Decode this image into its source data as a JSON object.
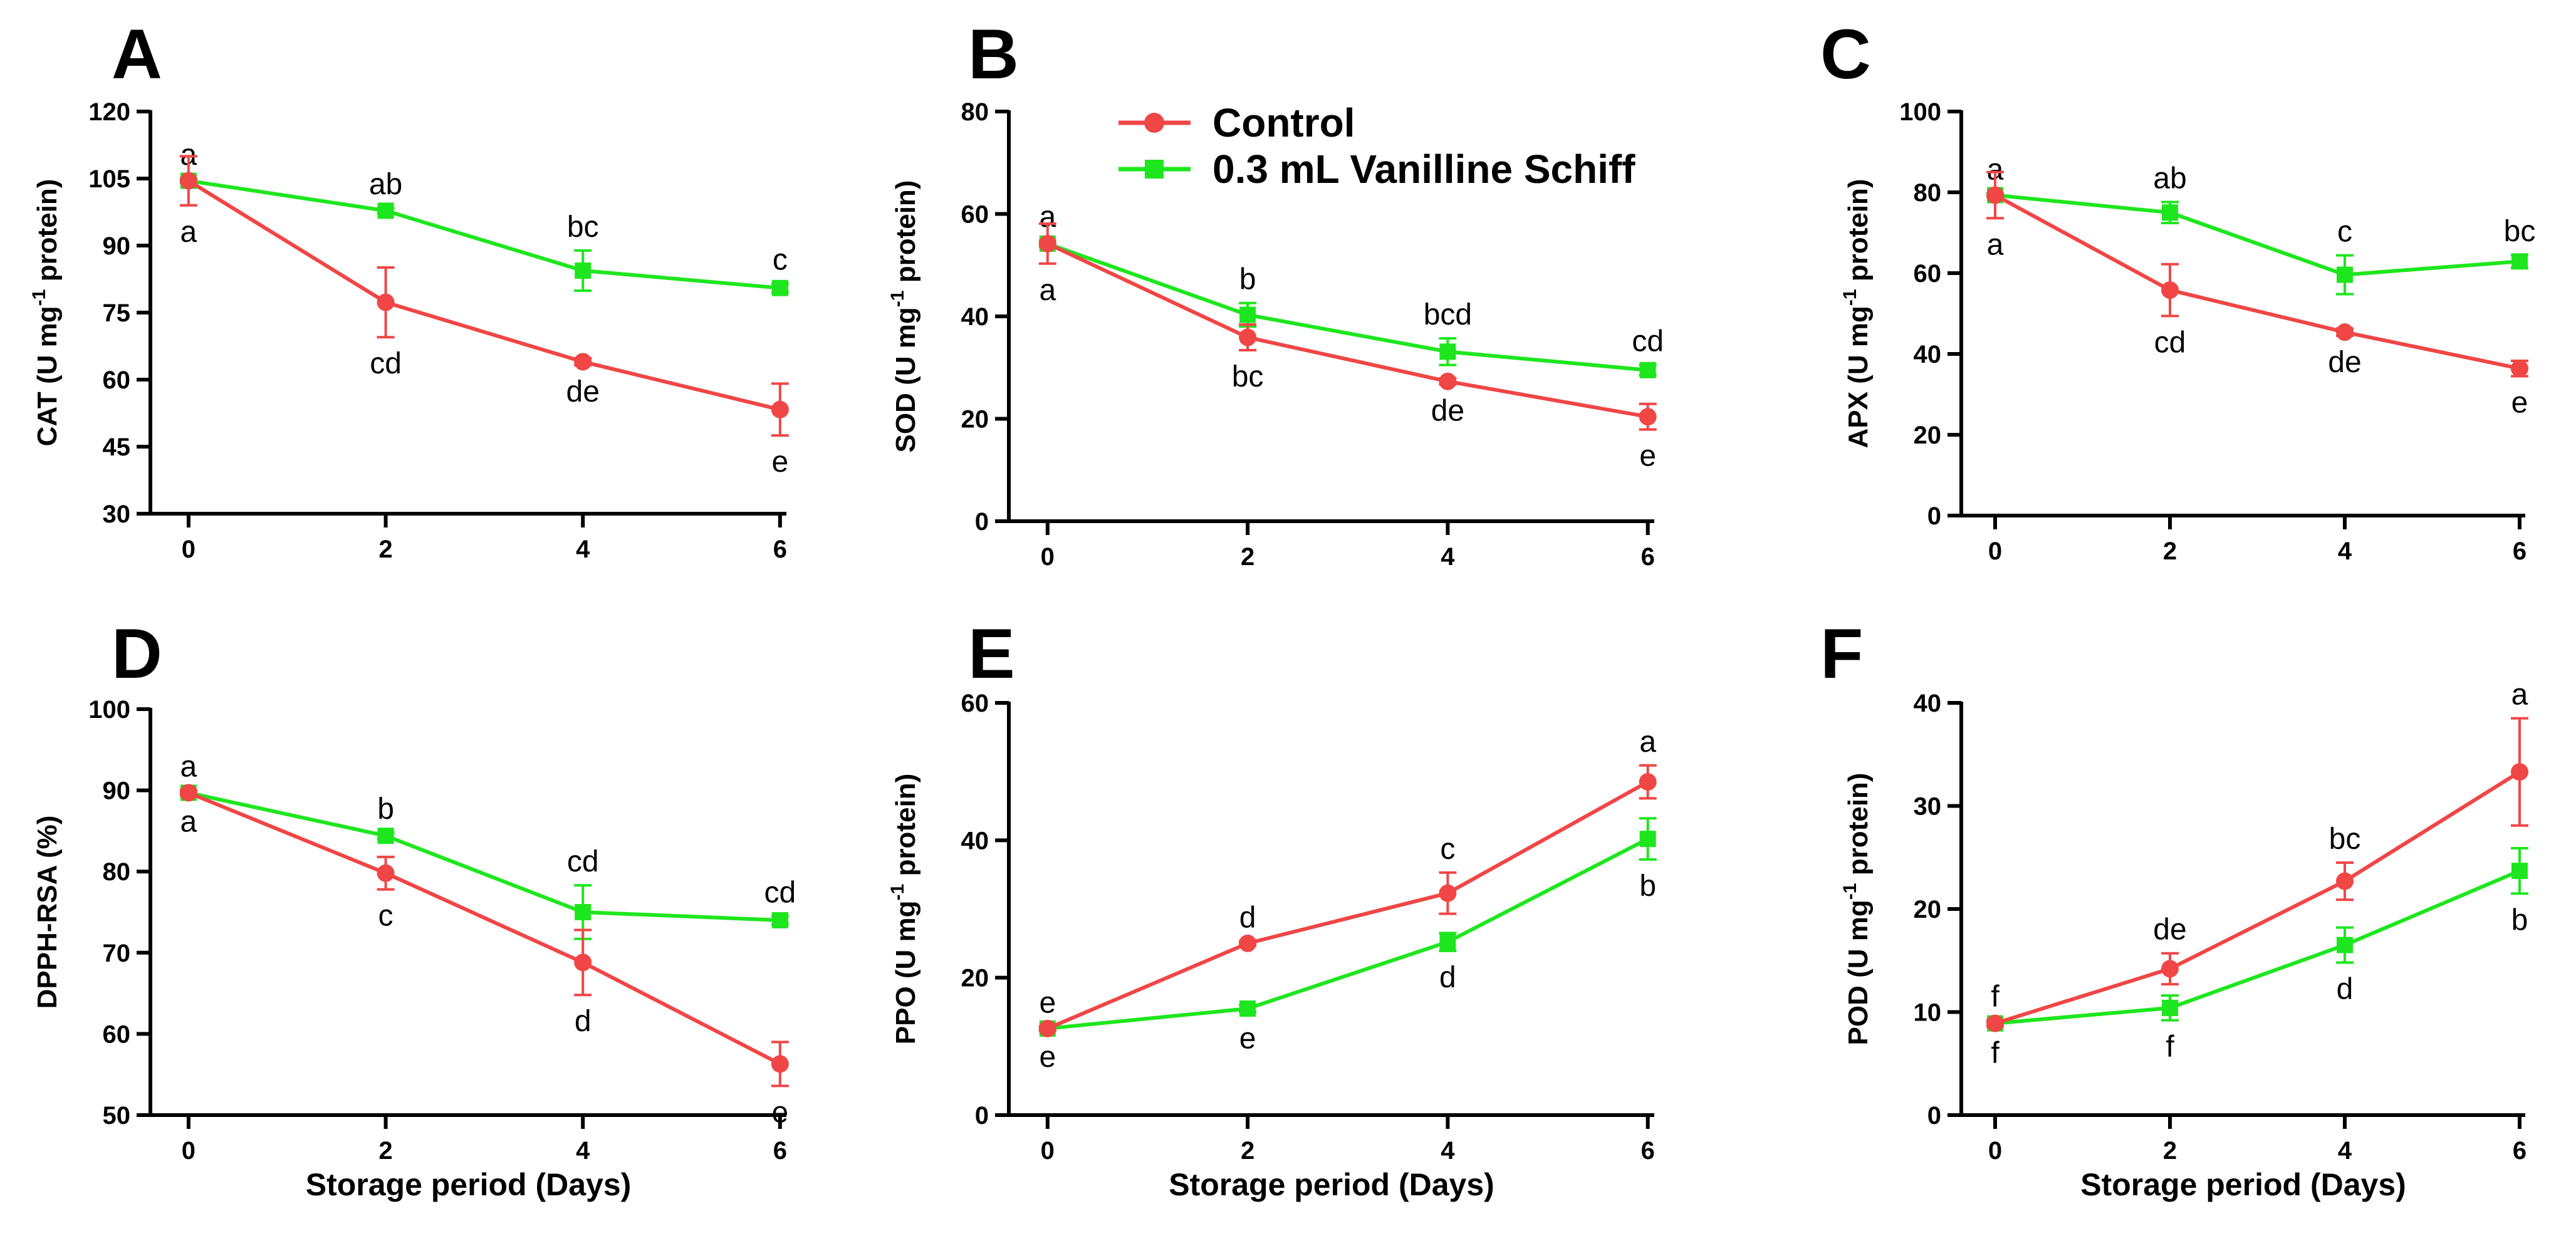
{
  "colors": {
    "control": "#f04646",
    "treatment": "#1ee61e",
    "axis": "#000000"
  },
  "legend": {
    "series": [
      "Control",
      "0.3 mL Vanilline Schiff"
    ],
    "placement": "top-center"
  },
  "x_axis_label": "Storage period (Days)",
  "chart_data": [
    {
      "type": "line",
      "panel": "A",
      "ylabel_html": [
        "CAT (U mg",
        "-1",
        " protein)"
      ],
      "ylim": [
        30,
        120
      ],
      "yticks": [
        30,
        45,
        60,
        75,
        90,
        105,
        120
      ],
      "x": [
        0,
        2,
        4,
        6
      ],
      "xticks": [
        "0",
        "2",
        "4",
        "6"
      ],
      "series": [
        {
          "name": "Control",
          "values": [
            104.5,
            77.3,
            64.0,
            53.3
          ],
          "err": [
            5.5,
            7.8,
            0.8,
            5.8
          ],
          "letters": [
            "a",
            "cd",
            "de",
            "e"
          ],
          "letter_pos": [
            "below",
            "below",
            "below",
            "below"
          ]
        },
        {
          "name": "0.3 mL Vanilline Schiff",
          "values": [
            104.5,
            97.8,
            84.4,
            80.5
          ],
          "err": [
            0.5,
            0.6,
            4.5,
            1.0
          ],
          "letters": [
            "a",
            "ab",
            "bc",
            "c"
          ],
          "letter_pos": [
            "above",
            "above",
            "above",
            "above"
          ]
        }
      ]
    },
    {
      "type": "line",
      "panel": "B",
      "ylabel_html": [
        "SOD (U mg",
        "-1",
        " protein)"
      ],
      "ylim": [
        0,
        80
      ],
      "yticks": [
        0,
        20,
        40,
        60,
        80
      ],
      "x": [
        0,
        2,
        4,
        6
      ],
      "xticks": [
        "0",
        "2",
        "4",
        "6"
      ],
      "series": [
        {
          "name": "Control",
          "values": [
            54.2,
            35.9,
            27.3,
            20.4
          ],
          "err": [
            3.9,
            2.5,
            0.6,
            2.5
          ],
          "letters": [
            "a",
            "bc",
            "de",
            "e"
          ],
          "letter_pos": [
            "below",
            "below",
            "below",
            "below"
          ]
        },
        {
          "name": "0.3 mL Vanilline Schiff",
          "values": [
            54.2,
            40.3,
            33.1,
            29.5
          ],
          "err": [
            0.6,
            2.3,
            2.6,
            1.0
          ],
          "letters": [
            "a",
            "b",
            "bcd",
            "cd"
          ],
          "letter_pos": [
            "above",
            "above",
            "above",
            "above"
          ]
        }
      ]
    },
    {
      "type": "line",
      "panel": "C",
      "ylabel_html": [
        "APX (U mg",
        "-1",
        " protein)"
      ],
      "ylim": [
        0,
        100
      ],
      "yticks": [
        0,
        20,
        40,
        60,
        80,
        100
      ],
      "x": [
        0,
        2,
        4,
        6
      ],
      "xticks": [
        "0",
        "2",
        "4",
        "6"
      ],
      "series": [
        {
          "name": "Control",
          "values": [
            79.3,
            55.8,
            45.4,
            36.4
          ],
          "err": [
            5.7,
            6.4,
            0.9,
            1.9
          ],
          "letters": [
            "a",
            "cd",
            "de",
            "e"
          ],
          "letter_pos": [
            "below",
            "below",
            "below",
            "below"
          ]
        },
        {
          "name": "0.3 mL Vanilline Schiff",
          "values": [
            79.3,
            75.0,
            59.6,
            62.9
          ],
          "err": [
            0.5,
            2.6,
            4.8,
            1.6
          ],
          "letters": [
            "a",
            "ab",
            "c",
            "bc"
          ],
          "letter_pos": [
            "above",
            "above",
            "above",
            "above"
          ]
        }
      ]
    },
    {
      "type": "line",
      "panel": "D",
      "ylabel_html": [
        "DPPH-RSA (%)"
      ],
      "ylim": [
        50,
        100
      ],
      "yticks": [
        50,
        60,
        70,
        80,
        90,
        100
      ],
      "x": [
        0,
        2,
        4,
        6
      ],
      "xticks": [
        "0",
        "2",
        "4",
        "6"
      ],
      "series": [
        {
          "name": "Control",
          "values": [
            89.7,
            79.8,
            68.8,
            56.3
          ],
          "err": [
            0.3,
            2.0,
            4.0,
            2.7
          ],
          "letters": [
            "a",
            "c",
            "d",
            "e"
          ],
          "letter_pos": [
            "below",
            "below",
            "below",
            "below"
          ]
        },
        {
          "name": "0.3 mL Vanilline Schiff",
          "values": [
            89.7,
            84.4,
            75.0,
            74.0
          ],
          "err": [
            0.3,
            0.4,
            3.3,
            0.5
          ],
          "letters": [
            "a",
            "b",
            "cd",
            "cd"
          ],
          "letter_pos": [
            "above",
            "above",
            "above",
            "above"
          ]
        }
      ]
    },
    {
      "type": "line",
      "panel": "E",
      "ylabel_html": [
        "PPO (U mg",
        "-1",
        " protein)"
      ],
      "ylim": [
        0,
        60
      ],
      "yticks": [
        0,
        20,
        40,
        60
      ],
      "x": [
        0,
        2,
        4,
        6
      ],
      "xticks": [
        "0",
        "2",
        "4",
        "6"
      ],
      "series": [
        {
          "name": "Control",
          "values": [
            12.6,
            25.0,
            32.3,
            48.5
          ],
          "err": [
            0.3,
            0.3,
            3.0,
            2.4
          ],
          "letters": [
            "e",
            "d",
            "c",
            "a"
          ],
          "letter_pos": [
            "above",
            "above",
            "above",
            "above"
          ]
        },
        {
          "name": "0.3 mL Vanilline Schiff",
          "values": [
            12.6,
            15.5,
            25.2,
            40.2
          ],
          "err": [
            0.3,
            0.5,
            1.3,
            3.0
          ],
          "letters": [
            "e",
            "e",
            "d",
            "b"
          ],
          "letter_pos": [
            "below",
            "below",
            "below",
            "below"
          ]
        }
      ]
    },
    {
      "type": "line",
      "panel": "F",
      "ylabel_html": [
        "POD (U mg",
        "-1",
        " protein)"
      ],
      "ylim": [
        0,
        40
      ],
      "yticks": [
        0,
        10,
        20,
        30,
        40
      ],
      "x": [
        0,
        2,
        4,
        6
      ],
      "xticks": [
        "0",
        "2",
        "4",
        "6"
      ],
      "series": [
        {
          "name": "Control",
          "values": [
            8.9,
            14.2,
            22.7,
            33.3
          ],
          "err": [
            0.3,
            1.5,
            1.8,
            5.2
          ],
          "letters": [
            "f",
            "de",
            "bc",
            "a"
          ],
          "letter_pos": [
            "above",
            "above",
            "above",
            "above"
          ]
        },
        {
          "name": "0.3 mL Vanilline Schiff",
          "values": [
            8.9,
            10.4,
            16.5,
            23.7
          ],
          "err": [
            0.3,
            1.2,
            1.7,
            2.2
          ],
          "letters": [
            "f",
            "f",
            "d",
            "b"
          ],
          "letter_pos": [
            "below",
            "below",
            "below",
            "below"
          ]
        }
      ]
    }
  ]
}
